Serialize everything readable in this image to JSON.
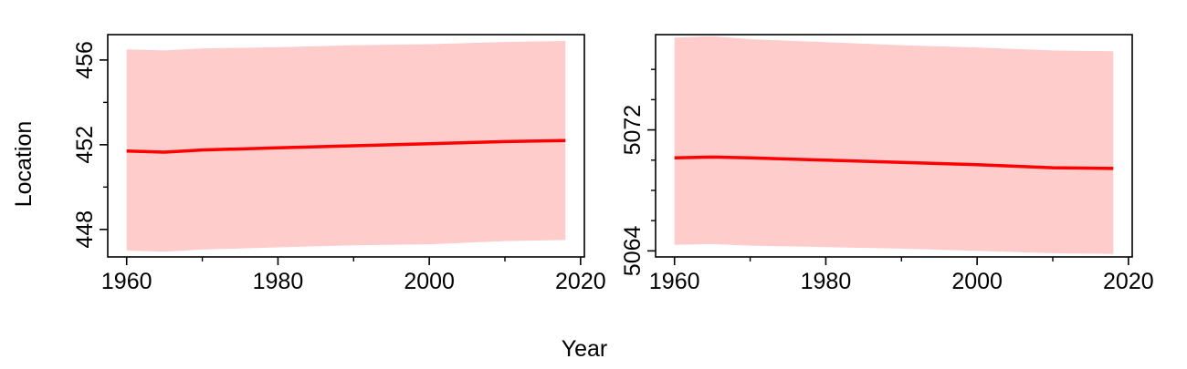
{
  "figure": {
    "ylabel": "Location",
    "xlabel": "Year"
  },
  "colors": {
    "line": "#ff0000",
    "band": "#ffcccc",
    "axis": "#000000"
  },
  "chart_data": [
    {
      "type": "line",
      "panel": "left",
      "xlim": [
        1957.5,
        2020.5
      ],
      "ylim": [
        446.7,
        457.2
      ],
      "x_ticks": [
        1960,
        1980,
        2000,
        2020
      ],
      "x_tick_labels": [
        "1960",
        "1980",
        "2000",
        "2020"
      ],
      "x_minor_ticks": [
        1970,
        1990,
        2010
      ],
      "y_ticks": [
        448,
        452,
        456
      ],
      "y_tick_labels": [
        "448",
        "452",
        "456"
      ],
      "y_minor_ticks": [
        450,
        454
      ],
      "grid": false,
      "series": [
        {
          "role": "estimate",
          "x": [
            1960,
            1965,
            1970,
            1980,
            1990,
            2000,
            2010,
            2018
          ],
          "y": [
            451.7,
            451.65,
            451.75,
            451.85,
            451.95,
            452.05,
            452.15,
            452.2
          ]
        },
        {
          "role": "interval",
          "x": [
            1960,
            1965,
            1970,
            1980,
            1990,
            2000,
            2010,
            2018
          ],
          "lower": [
            447.0,
            446.95,
            447.05,
            447.15,
            447.25,
            447.3,
            447.45,
            447.5
          ],
          "upper": [
            456.5,
            456.45,
            456.55,
            456.6,
            456.7,
            456.75,
            456.85,
            456.9
          ]
        }
      ]
    },
    {
      "type": "line",
      "panel": "right",
      "xlim": [
        1957.5,
        2020.5
      ],
      "ylim": [
        5063.6,
        5078.3
      ],
      "x_ticks": [
        1960,
        1980,
        2000,
        2020
      ],
      "x_tick_labels": [
        "1960",
        "1980",
        "2000",
        "2020"
      ],
      "x_minor_ticks": [
        1970,
        1990,
        2010
      ],
      "y_ticks": [
        5064,
        5072
      ],
      "y_tick_labels": [
        "5064",
        "5072"
      ],
      "y_minor_ticks": [
        5066,
        5068,
        5070,
        5074,
        5076
      ],
      "grid": false,
      "series": [
        {
          "role": "estimate",
          "x": [
            1960,
            1965,
            1970,
            1980,
            1990,
            2000,
            2010,
            2018
          ],
          "y": [
            5070.15,
            5070.2,
            5070.15,
            5070.0,
            5069.85,
            5069.7,
            5069.5,
            5069.45
          ]
        },
        {
          "role": "interval",
          "x": [
            1960,
            1965,
            1970,
            1980,
            1990,
            2000,
            2010,
            2018
          ],
          "lower": [
            5064.4,
            5064.45,
            5064.35,
            5064.25,
            5064.15,
            5064.0,
            5063.85,
            5063.8
          ],
          "upper": [
            5078.1,
            5078.2,
            5078.0,
            5077.8,
            5077.6,
            5077.45,
            5077.25,
            5077.2
          ]
        }
      ]
    }
  ]
}
